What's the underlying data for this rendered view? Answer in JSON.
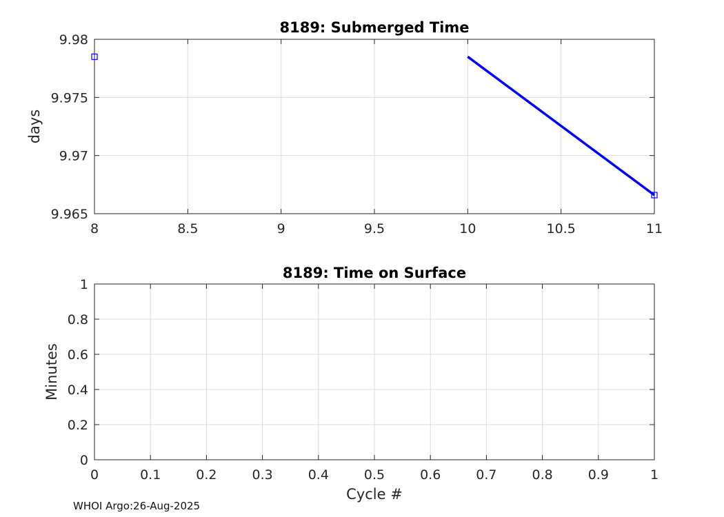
{
  "chart_data": [
    {
      "type": "line",
      "title": "8189: Submerged Time",
      "xlabel": "",
      "ylabel": "days",
      "xlim": [
        8,
        11
      ],
      "ylim": [
        9.965,
        9.98
      ],
      "xticks": [
        8,
        8.5,
        9,
        9.5,
        10,
        10.5,
        11
      ],
      "xtick_labels": [
        "8",
        "8.5",
        "9",
        "9.5",
        "10",
        "10.5",
        "11"
      ],
      "yticks": [
        9.965,
        9.97,
        9.975,
        9.98
      ],
      "ytick_labels": [
        "9.965",
        "9.97",
        "9.975",
        "9.98"
      ],
      "grid": true,
      "series": [
        {
          "name": "submerged time",
          "color": "#0000ff",
          "line_segments": [
            [
              {
                "x": 10,
                "y": 9.9785
              },
              {
                "x": 11,
                "y": 9.9666
              }
            ]
          ],
          "markers": [
            {
              "x": 8,
              "y": 9.9785
            },
            {
              "x": 11,
              "y": 9.9666
            }
          ],
          "marker": "square"
        }
      ]
    },
    {
      "type": "line",
      "title": "8189: Time on Surface",
      "xlabel": "Cycle #",
      "ylabel": "Minutes",
      "xlim": [
        0,
        1
      ],
      "ylim": [
        0,
        1
      ],
      "xticks": [
        0,
        0.1,
        0.2,
        0.3,
        0.4,
        0.5,
        0.6,
        0.7,
        0.8,
        0.9,
        1
      ],
      "xtick_labels": [
        "0",
        "0.1",
        "0.2",
        "0.3",
        "0.4",
        "0.5",
        "0.6",
        "0.7",
        "0.8",
        "0.9",
        "1"
      ],
      "yticks": [
        0,
        0.2,
        0.4,
        0.6,
        0.8,
        1
      ],
      "ytick_labels": [
        "0",
        "0.2",
        "0.4",
        "0.6",
        "0.8",
        "1"
      ],
      "grid": true,
      "series": []
    }
  ],
  "footer": "WHOI Argo:26-Aug-2025",
  "colors": {
    "series": "#0000ff",
    "grid": "#dcdcdc",
    "axis": "#262626"
  }
}
